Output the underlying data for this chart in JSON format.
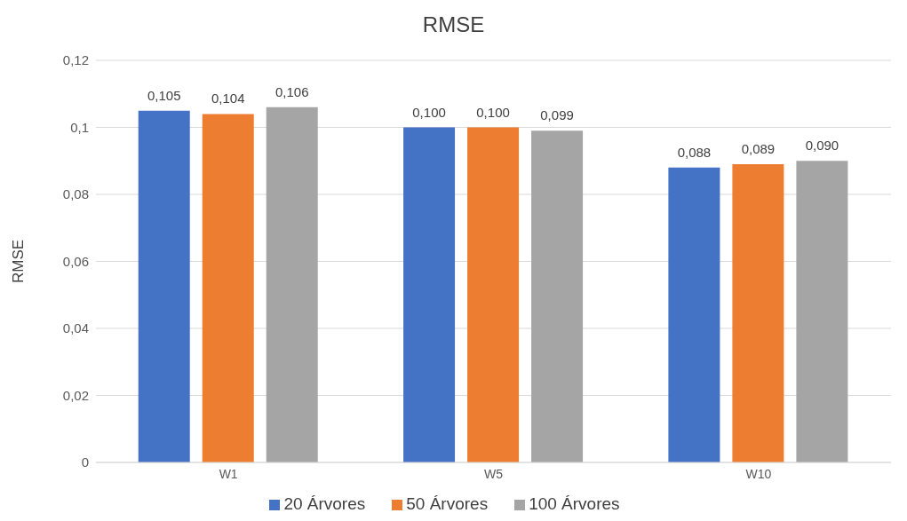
{
  "chart_data": {
    "type": "bar",
    "title": "RMSE",
    "ylabel": "RMSE",
    "categories": [
      "W1",
      "W5",
      "W10"
    ],
    "series": [
      {
        "name": "20 Árvores",
        "color": "#4472c4",
        "values": [
          0.105,
          0.1,
          0.088
        ],
        "value_labels": [
          "0,105",
          "0,100",
          "0,088"
        ]
      },
      {
        "name": "50 Árvores",
        "color": "#ed7d31",
        "values": [
          0.104,
          0.1,
          0.089
        ],
        "value_labels": [
          "0,104",
          "0,100",
          "0,089"
        ]
      },
      {
        "name": "100 Árvores",
        "color": "#a5a5a5",
        "values": [
          0.106,
          0.099,
          0.09
        ],
        "value_labels": [
          "0,106",
          "0,099",
          "0,090"
        ]
      }
    ],
    "ylim": [
      0,
      0.12
    ],
    "yticks": [
      0,
      {
        "value": 0.02,
        "label": "0,02"
      },
      {
        "value": 0.04,
        "label": "0,04"
      },
      {
        "value": 0.06,
        "label": "0,06"
      },
      {
        "value": 0.08,
        "label": "0,08"
      },
      {
        "value": 0.1,
        "label": "0,1"
      },
      {
        "value": 0.12,
        "label": "0,12"
      }
    ],
    "grid": "y",
    "legend": "bottom"
  }
}
